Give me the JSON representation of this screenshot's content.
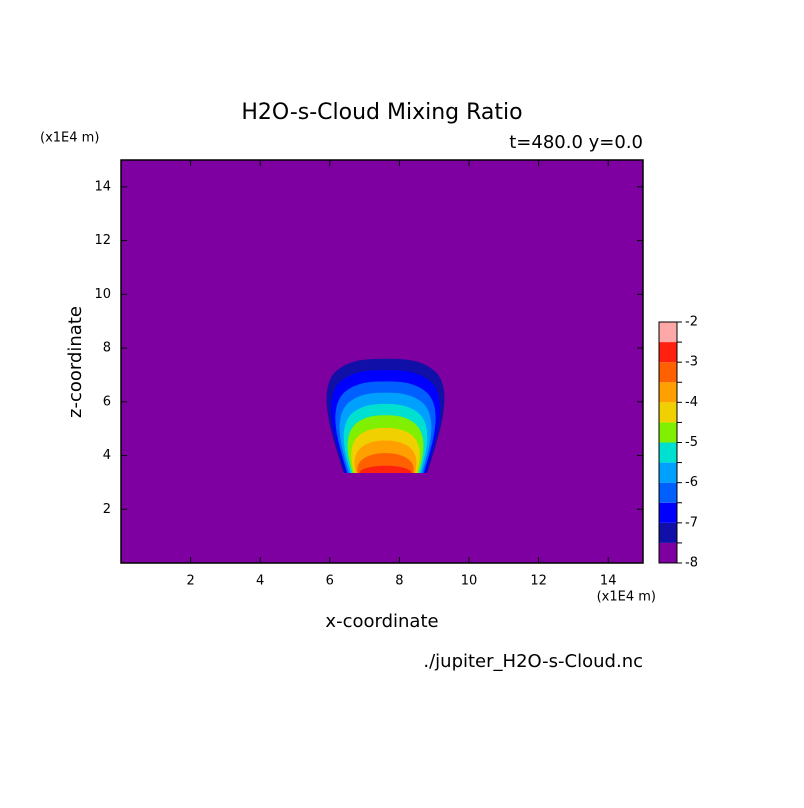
{
  "chart_data": {
    "type": "contour",
    "title": "H2O-s-Cloud Mixing Ratio",
    "subtitle": "t=480.0 y=0.0",
    "xlabel": "x-coordinate",
    "ylabel": "z-coordinate",
    "x_unit": "(x1E4 m)",
    "y_unit": "(x1E4 m)",
    "footnote": "./jupiter_H2O-s-Cloud.nc",
    "xlim": [
      0,
      15
    ],
    "xticks": [
      2,
      4,
      6,
      8,
      10,
      12,
      14
    ],
    "ylim": [
      0,
      15
    ],
    "yticks": [
      2,
      4,
      6,
      8,
      10,
      12,
      14
    ],
    "levels": [
      -8,
      -7.5,
      -7,
      -6.5,
      -6,
      -5.5,
      -5,
      -4.5,
      -4,
      -3.5,
      -3,
      -2.5,
      -2
    ],
    "colors": [
      "#7f00a0",
      "#1010a8",
      "#0000ff",
      "#0060ff",
      "#00a0ff",
      "#00e0d0",
      "#80f000",
      "#f0d000",
      "#ffa000",
      "#ff6000",
      "#ff2010",
      "#ff4040"
    ],
    "top_color": "#ffa8a8",
    "cbticks": [
      -8,
      -7,
      -6,
      -5,
      -4,
      -3,
      -2
    ]
  }
}
